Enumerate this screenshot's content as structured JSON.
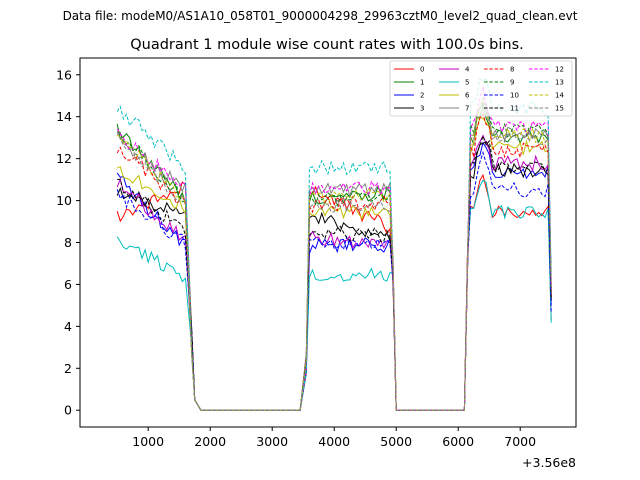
{
  "figure": {
    "suptitle": "Data file: modeM0/AS1A10_058T01_9000004298_29963cztM0_level2_quad_clean.evt",
    "offset_label": "+3.56e8"
  },
  "chart_data": {
    "type": "line",
    "title": "Quadrant 1 module wise count rates with 100.0s bins.",
    "xlabel": "",
    "ylabel": "",
    "x_offset": 356000000,
    "xlim": [
      -100,
      7900
    ],
    "ylim": [
      -0.8,
      16.8
    ],
    "xticks": [
      1000,
      2000,
      3000,
      4000,
      5000,
      6000,
      7000
    ],
    "yticks": [
      0,
      2,
      4,
      6,
      8,
      10,
      12,
      14,
      16
    ],
    "legend_position": "top-right",
    "series": [
      {
        "name": "0",
        "color": "#ff0000",
        "dash": "solid",
        "base": [
          9.3,
          10.6,
          8.7,
          9.5
        ]
      },
      {
        "name": "1",
        "color": "#008000",
        "dash": "solid",
        "base": [
          13.3,
          10.1,
          10.4,
          13.0
        ]
      },
      {
        "name": "2",
        "color": "#0000ff",
        "dash": "solid",
        "base": [
          11.1,
          7.8,
          7.9,
          11.3
        ]
      },
      {
        "name": "3",
        "color": "#000000",
        "dash": "solid",
        "base": [
          10.4,
          9.3,
          8.2,
          11.4
        ]
      },
      {
        "name": "4",
        "color": "#bf00bf",
        "dash": "solid",
        "base": [
          10.8,
          8.2,
          8.0,
          11.8
        ]
      },
      {
        "name": "5",
        "color": "#00bfbf",
        "dash": "solid",
        "base": [
          8.1,
          6.4,
          6.5,
          9.5
        ]
      },
      {
        "name": "6",
        "color": "#bfbf00",
        "dash": "solid",
        "base": [
          11.6,
          9.6,
          9.3,
          12.5
        ]
      },
      {
        "name": "7",
        "color": "#808080",
        "dash": "solid",
        "base": [
          13.0,
          10.6,
          10.5,
          13.2
        ]
      },
      {
        "name": "8",
        "color": "#ff0000",
        "dash": "dashed",
        "base": [
          12.6,
          9.8,
          9.9,
          12.4
        ]
      },
      {
        "name": "9",
        "color": "#008000",
        "dash": "dashed",
        "base": [
          13.4,
          10.0,
          10.2,
          13.3
        ]
      },
      {
        "name": "10",
        "color": "#0000ff",
        "dash": "dashed",
        "base": [
          10.3,
          8.0,
          7.8,
          10.5
        ]
      },
      {
        "name": "11",
        "color": "#000000",
        "dash": "dashed",
        "base": [
          10.9,
          8.5,
          8.3,
          11.7
        ]
      },
      {
        "name": "12",
        "color": "#ff00ff",
        "dash": "dashed",
        "base": [
          13.2,
          10.5,
          10.6,
          13.5
        ]
      },
      {
        "name": "13",
        "color": "#00bfbf",
        "dash": "dashed",
        "base": [
          14.4,
          11.6,
          11.6,
          14.4
        ]
      },
      {
        "name": "14",
        "color": "#bfbf00",
        "dash": "dashed",
        "base": [
          12.9,
          10.1,
          10.3,
          13.1
        ]
      },
      {
        "name": "15",
        "color": "#808080",
        "dash": "dashed",
        "base": [
          13.1,
          9.8,
          9.8,
          13.0
        ]
      }
    ],
    "segments": [
      {
        "start": 500,
        "end": 1600,
        "base_index": [
          0,
          1
        ]
      },
      {
        "start": 3600,
        "end": 4900,
        "base_index": [
          1,
          2
        ]
      },
      {
        "start": 6200,
        "end": 7500,
        "base_index": [
          3,
          3
        ]
      }
    ],
    "gaps": [
      {
        "from": 1600,
        "to": 3600
      },
      {
        "from": 4900,
        "to": 6200
      }
    ]
  }
}
